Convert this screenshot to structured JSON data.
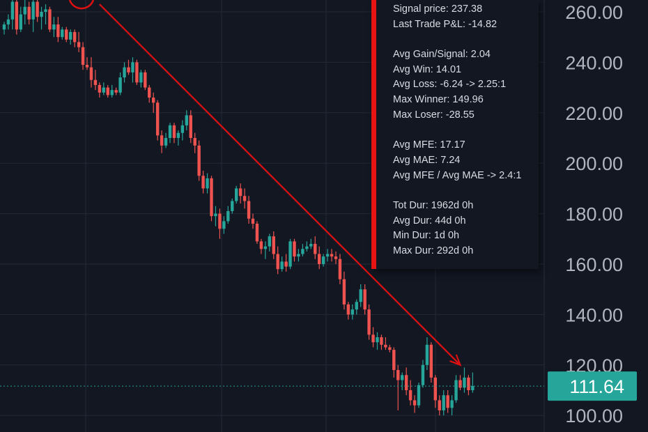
{
  "stats_panel": {
    "lines": [
      "Signal price: 237.38",
      "Last Trade P&L: -14.82",
      "",
      "Avg Gain/Signal: 2.04",
      "Avg Win: 14.01",
      "Avg Loss: -6.24 -> 2.25:1",
      "Max Winner: 149.96",
      "Max Loser: -28.55",
      "",
      "Avg MFE: 17.17",
      "Avg MAE: 7.24",
      "Avg MFE / Avg MAE -> 2.4:1",
      "",
      "Tot Dur: 1962d 0h",
      "Avg Dur: 44d 0h",
      "Min Dur: 1d 0h",
      "Max Dur: 292d 0h"
    ]
  },
  "colors": {
    "background": "#131722",
    "grid": "#232836",
    "up": "#26a69a",
    "down": "#ef5350",
    "arrow": "#e01010",
    "price_label_bg": "#26a69a",
    "axis_text": "#b2b5be"
  },
  "chart_data": {
    "type": "candlestick",
    "y_axis": {
      "ticks": [
        "260.00",
        "240.00",
        "220.00",
        "200.00",
        "180.00",
        "160.00",
        "140.00",
        "120.00",
        "100.00"
      ],
      "ylim": [
        97,
        265
      ],
      "position": "right"
    },
    "grid": true,
    "current_price": {
      "value": 111.64,
      "label": "111.64"
    },
    "trend_arrow": {
      "from": {
        "index": 23,
        "price": 263
      },
      "to": {
        "index": 110,
        "price": 120
      }
    },
    "candles": [
      {
        "o": 253,
        "h": 256,
        "l": 251,
        "c": 255
      },
      {
        "o": 255,
        "h": 259,
        "l": 253,
        "c": 257
      },
      {
        "o": 257,
        "h": 266,
        "l": 253,
        "c": 264
      },
      {
        "o": 264,
        "h": 266,
        "l": 251,
        "c": 253
      },
      {
        "o": 253,
        "h": 262,
        "l": 252,
        "c": 259
      },
      {
        "o": 259,
        "h": 266,
        "l": 255,
        "c": 262
      },
      {
        "o": 262,
        "h": 264,
        "l": 255,
        "c": 257
      },
      {
        "o": 257,
        "h": 265,
        "l": 252,
        "c": 264
      },
      {
        "o": 264,
        "h": 266,
        "l": 256,
        "c": 258
      },
      {
        "o": 258,
        "h": 262,
        "l": 253,
        "c": 260
      },
      {
        "o": 260,
        "h": 263,
        "l": 255,
        "c": 261
      },
      {
        "o": 261,
        "h": 262,
        "l": 252,
        "c": 253
      },
      {
        "o": 253,
        "h": 258,
        "l": 250,
        "c": 255
      },
      {
        "o": 255,
        "h": 258,
        "l": 248,
        "c": 250
      },
      {
        "o": 250,
        "h": 254,
        "l": 249,
        "c": 253
      },
      {
        "o": 253,
        "h": 254,
        "l": 248,
        "c": 249
      },
      {
        "o": 249,
        "h": 253,
        "l": 247,
        "c": 252
      },
      {
        "o": 252,
        "h": 253,
        "l": 246,
        "c": 248
      },
      {
        "o": 248,
        "h": 252,
        "l": 244,
        "c": 246
      },
      {
        "o": 246,
        "h": 248,
        "l": 237,
        "c": 239
      },
      {
        "o": 239,
        "h": 242,
        "l": 237,
        "c": 238
      },
      {
        "o": 238,
        "h": 242,
        "l": 230,
        "c": 233
      },
      {
        "o": 233,
        "h": 237,
        "l": 229,
        "c": 231
      },
      {
        "o": 231,
        "h": 232,
        "l": 226,
        "c": 228
      },
      {
        "o": 228,
        "h": 232,
        "l": 227,
        "c": 230
      },
      {
        "o": 230,
        "h": 231,
        "l": 226,
        "c": 227
      },
      {
        "o": 227,
        "h": 231,
        "l": 226,
        "c": 229
      },
      {
        "o": 229,
        "h": 230,
        "l": 227,
        "c": 228
      },
      {
        "o": 228,
        "h": 236,
        "l": 227,
        "c": 234
      },
      {
        "o": 234,
        "h": 240,
        "l": 232,
        "c": 238
      },
      {
        "o": 238,
        "h": 241,
        "l": 235,
        "c": 236
      },
      {
        "o": 236,
        "h": 242,
        "l": 232,
        "c": 240
      },
      {
        "o": 240,
        "h": 241,
        "l": 231,
        "c": 232
      },
      {
        "o": 232,
        "h": 237,
        "l": 230,
        "c": 236
      },
      {
        "o": 236,
        "h": 237,
        "l": 229,
        "c": 230
      },
      {
        "o": 230,
        "h": 231,
        "l": 224,
        "c": 226
      },
      {
        "o": 226,
        "h": 228,
        "l": 220,
        "c": 224
      },
      {
        "o": 224,
        "h": 225,
        "l": 209,
        "c": 211
      },
      {
        "o": 211,
        "h": 213,
        "l": 204,
        "c": 207
      },
      {
        "o": 207,
        "h": 212,
        "l": 206,
        "c": 210
      },
      {
        "o": 210,
        "h": 216,
        "l": 208,
        "c": 215
      },
      {
        "o": 215,
        "h": 216,
        "l": 208,
        "c": 210
      },
      {
        "o": 210,
        "h": 213,
        "l": 207,
        "c": 212
      },
      {
        "o": 212,
        "h": 217,
        "l": 209,
        "c": 215
      },
      {
        "o": 215,
        "h": 221,
        "l": 213,
        "c": 219
      },
      {
        "o": 219,
        "h": 221,
        "l": 208,
        "c": 210
      },
      {
        "o": 210,
        "h": 212,
        "l": 204,
        "c": 207
      },
      {
        "o": 207,
        "h": 209,
        "l": 193,
        "c": 195
      },
      {
        "o": 195,
        "h": 197,
        "l": 188,
        "c": 190
      },
      {
        "o": 190,
        "h": 196,
        "l": 188,
        "c": 194
      },
      {
        "o": 194,
        "h": 195,
        "l": 177,
        "c": 179
      },
      {
        "o": 179,
        "h": 183,
        "l": 175,
        "c": 180
      },
      {
        "o": 180,
        "h": 182,
        "l": 170,
        "c": 174
      },
      {
        "o": 174,
        "h": 179,
        "l": 172,
        "c": 177
      },
      {
        "o": 177,
        "h": 183,
        "l": 176,
        "c": 181
      },
      {
        "o": 181,
        "h": 186,
        "l": 180,
        "c": 185
      },
      {
        "o": 185,
        "h": 191,
        "l": 184,
        "c": 190
      },
      {
        "o": 190,
        "h": 192,
        "l": 184,
        "c": 187
      },
      {
        "o": 187,
        "h": 190,
        "l": 182,
        "c": 185
      },
      {
        "o": 185,
        "h": 187,
        "l": 176,
        "c": 178
      },
      {
        "o": 178,
        "h": 180,
        "l": 174,
        "c": 176
      },
      {
        "o": 176,
        "h": 177,
        "l": 168,
        "c": 169
      },
      {
        "o": 169,
        "h": 170,
        "l": 164,
        "c": 166
      },
      {
        "o": 166,
        "h": 169,
        "l": 162,
        "c": 167
      },
      {
        "o": 167,
        "h": 172,
        "l": 165,
        "c": 171
      },
      {
        "o": 171,
        "h": 173,
        "l": 162,
        "c": 164
      },
      {
        "o": 164,
        "h": 167,
        "l": 156,
        "c": 158
      },
      {
        "o": 158,
        "h": 163,
        "l": 157,
        "c": 161
      },
      {
        "o": 161,
        "h": 164,
        "l": 157,
        "c": 159
      },
      {
        "o": 159,
        "h": 170,
        "l": 158,
        "c": 169
      },
      {
        "o": 169,
        "h": 170,
        "l": 161,
        "c": 163
      },
      {
        "o": 163,
        "h": 166,
        "l": 161,
        "c": 164
      },
      {
        "o": 164,
        "h": 168,
        "l": 163,
        "c": 166
      },
      {
        "o": 166,
        "h": 169,
        "l": 165,
        "c": 167
      },
      {
        "o": 167,
        "h": 170,
        "l": 166,
        "c": 168
      },
      {
        "o": 168,
        "h": 171,
        "l": 162,
        "c": 164
      },
      {
        "o": 164,
        "h": 167,
        "l": 158,
        "c": 160
      },
      {
        "o": 160,
        "h": 164,
        "l": 159,
        "c": 163
      },
      {
        "o": 163,
        "h": 166,
        "l": 161,
        "c": 164
      },
      {
        "o": 164,
        "h": 166,
        "l": 161,
        "c": 163
      },
      {
        "o": 163,
        "h": 165,
        "l": 160,
        "c": 162
      },
      {
        "o": 162,
        "h": 164,
        "l": 152,
        "c": 154
      },
      {
        "o": 154,
        "h": 157,
        "l": 142,
        "c": 144
      },
      {
        "o": 144,
        "h": 145,
        "l": 138,
        "c": 140
      },
      {
        "o": 140,
        "h": 144,
        "l": 138,
        "c": 142
      },
      {
        "o": 142,
        "h": 146,
        "l": 140,
        "c": 145
      },
      {
        "o": 145,
        "h": 152,
        "l": 143,
        "c": 150
      },
      {
        "o": 150,
        "h": 152,
        "l": 140,
        "c": 142
      },
      {
        "o": 142,
        "h": 144,
        "l": 130,
        "c": 132
      },
      {
        "o": 132,
        "h": 135,
        "l": 127,
        "c": 129
      },
      {
        "o": 129,
        "h": 133,
        "l": 126,
        "c": 131
      },
      {
        "o": 131,
        "h": 132,
        "l": 126,
        "c": 128
      },
      {
        "o": 128,
        "h": 131,
        "l": 126,
        "c": 127
      },
      {
        "o": 127,
        "h": 128,
        "l": 125,
        "c": 126
      },
      {
        "o": 126,
        "h": 127,
        "l": 115,
        "c": 118
      },
      {
        "o": 118,
        "h": 120,
        "l": 102,
        "c": 114
      },
      {
        "o": 114,
        "h": 117,
        "l": 110,
        "c": 116
      },
      {
        "o": 116,
        "h": 119,
        "l": 108,
        "c": 110
      },
      {
        "o": 110,
        "h": 114,
        "l": 104,
        "c": 106
      },
      {
        "o": 106,
        "h": 108,
        "l": 101,
        "c": 104
      },
      {
        "o": 104,
        "h": 113,
        "l": 103,
        "c": 112
      },
      {
        "o": 112,
        "h": 122,
        "l": 111,
        "c": 120
      },
      {
        "o": 120,
        "h": 131,
        "l": 118,
        "c": 128
      },
      {
        "o": 128,
        "h": 129,
        "l": 113,
        "c": 115
      },
      {
        "o": 115,
        "h": 116,
        "l": 103,
        "c": 106
      },
      {
        "o": 106,
        "h": 108,
        "l": 100,
        "c": 102
      },
      {
        "o": 102,
        "h": 110,
        "l": 100,
        "c": 108
      },
      {
        "o": 108,
        "h": 110,
        "l": 101,
        "c": 103
      },
      {
        "o": 103,
        "h": 108,
        "l": 100,
        "c": 106
      },
      {
        "o": 106,
        "h": 116,
        "l": 105,
        "c": 114
      },
      {
        "o": 114,
        "h": 116,
        "l": 110,
        "c": 111
      },
      {
        "o": 111,
        "h": 119,
        "l": 109,
        "c": 115
      },
      {
        "o": 115,
        "h": 116,
        "l": 108,
        "c": 110
      },
      {
        "o": 110,
        "h": 117,
        "l": 109,
        "c": 111.64
      }
    ]
  }
}
